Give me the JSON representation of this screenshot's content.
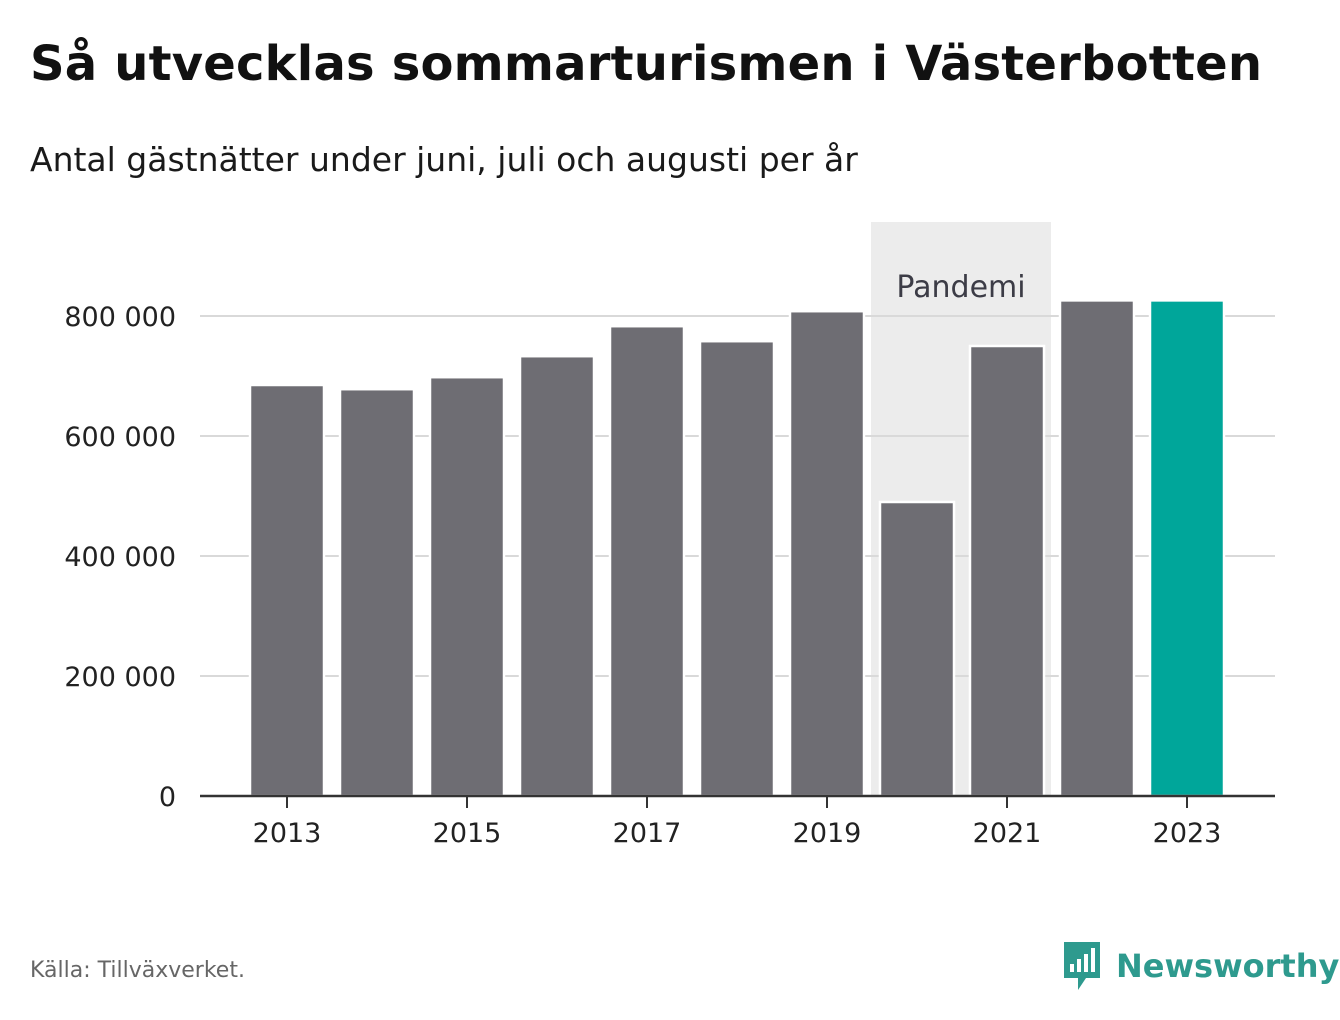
{
  "title": "Så utvecklas sommarturismen i Västerbotten",
  "subtitle": "Antal gästnätter under juni, juli och augusti per år",
  "source": "Källa: Tillväxverket.",
  "brand": {
    "name": "Newsworthy",
    "color": "#2e9a8e",
    "icon": "bar-chart-speech-bubble-icon"
  },
  "colors": {
    "bar_default": "#6e6d73",
    "bar_highlight": "#00a69a",
    "shading": "#ececec",
    "grid": "#d9d9d9",
    "axis": "#333333"
  },
  "chart_data": {
    "type": "bar",
    "categories": [
      "2013",
      "2014",
      "2015",
      "2016",
      "2017",
      "2018",
      "2019",
      "2020",
      "2021",
      "2022",
      "2023"
    ],
    "values": [
      685000,
      678000,
      698000,
      733000,
      783000,
      758000,
      808000,
      490000,
      750000,
      826000,
      826000
    ],
    "highlight": "2023",
    "x_tick_labels": [
      "2013",
      "2015",
      "2017",
      "2019",
      "2021",
      "2023"
    ],
    "y_ticks": [
      0,
      200000,
      400000,
      600000,
      800000
    ],
    "y_tick_labels": [
      "0",
      "200 000",
      "400 000",
      "600 000",
      "800 000"
    ],
    "ylim": [
      0,
      900000
    ],
    "grid": true,
    "annotation": {
      "label": "Pandemi",
      "from": "2020",
      "to": "2021"
    }
  }
}
